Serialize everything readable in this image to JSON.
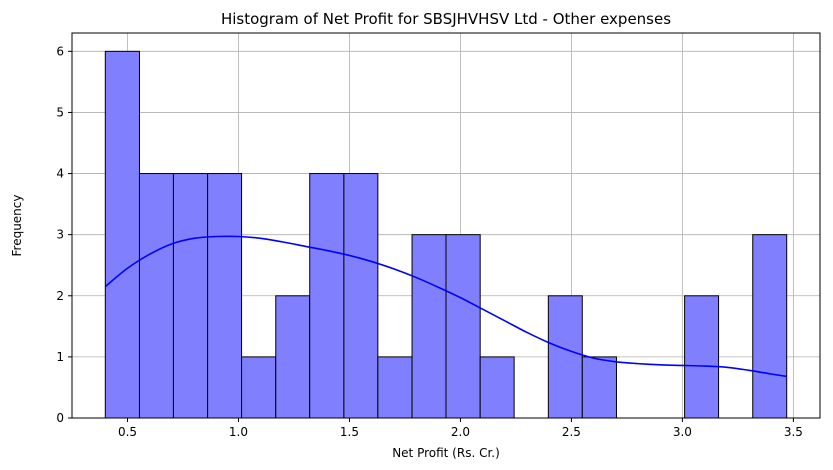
{
  "chart_data": {
    "type": "histogram",
    "title": "Histogram of Net Profit for SBSJHVHSV Ltd - Other expenses",
    "xlabel": "Net Profit (Rs. Cr.)",
    "ylabel": "Frequency",
    "xlim": [
      0.25,
      3.62
    ],
    "ylim": [
      0,
      6.3
    ],
    "xticks": [
      0.5,
      1.0,
      1.5,
      2.0,
      2.5,
      3.0,
      3.5
    ],
    "xtick_labels": [
      "0.5",
      "1.0",
      "1.5",
      "2.0",
      "2.5",
      "3.0",
      "3.5"
    ],
    "yticks": [
      0,
      1,
      2,
      3,
      4,
      5,
      6
    ],
    "ytick_labels": [
      "0",
      "1",
      "2",
      "3",
      "4",
      "5",
      "6"
    ],
    "grid": true,
    "bins": [
      {
        "start": 0.4,
        "end": 0.554,
        "count": 6
      },
      {
        "start": 0.554,
        "end": 0.707,
        "count": 4
      },
      {
        "start": 0.707,
        "end": 0.861,
        "count": 4
      },
      {
        "start": 0.861,
        "end": 1.014,
        "count": 4
      },
      {
        "start": 1.014,
        "end": 1.168,
        "count": 1
      },
      {
        "start": 1.168,
        "end": 1.321,
        "count": 2
      },
      {
        "start": 1.321,
        "end": 1.475,
        "count": 4
      },
      {
        "start": 1.475,
        "end": 1.628,
        "count": 4
      },
      {
        "start": 1.628,
        "end": 1.782,
        "count": 1
      },
      {
        "start": 1.782,
        "end": 1.935,
        "count": 3
      },
      {
        "start": 1.935,
        "end": 2.089,
        "count": 3
      },
      {
        "start": 2.089,
        "end": 2.242,
        "count": 1
      },
      {
        "start": 2.242,
        "end": 2.396,
        "count": 0
      },
      {
        "start": 2.396,
        "end": 2.549,
        "count": 2
      },
      {
        "start": 2.549,
        "end": 2.703,
        "count": 1
      },
      {
        "start": 2.703,
        "end": 2.856,
        "count": 0
      },
      {
        "start": 2.856,
        "end": 3.01,
        "count": 0
      },
      {
        "start": 3.01,
        "end": 3.163,
        "count": 2
      },
      {
        "start": 3.163,
        "end": 3.317,
        "count": 0
      },
      {
        "start": 3.317,
        "end": 3.47,
        "count": 3
      }
    ],
    "kde": {
      "x": [
        0.4,
        0.5,
        0.6,
        0.7,
        0.8,
        0.9,
        1.0,
        1.1,
        1.2,
        1.3,
        1.4,
        1.5,
        1.6,
        1.7,
        1.8,
        1.9,
        2.0,
        2.1,
        2.2,
        2.3,
        2.4,
        2.5,
        2.6,
        2.7,
        2.8,
        2.9,
        3.0,
        3.1,
        3.2,
        3.3,
        3.4,
        3.47
      ],
      "y": [
        2.15,
        2.45,
        2.68,
        2.85,
        2.94,
        2.97,
        2.97,
        2.94,
        2.88,
        2.81,
        2.74,
        2.66,
        2.56,
        2.44,
        2.3,
        2.14,
        1.97,
        1.78,
        1.59,
        1.4,
        1.23,
        1.09,
        0.98,
        0.92,
        0.89,
        0.87,
        0.86,
        0.85,
        0.83,
        0.78,
        0.72,
        0.68
      ]
    },
    "colors": {
      "bar_fill": "#8080ff",
      "bar_edge": "#000000",
      "kde_line": "#0000ff",
      "grid": "#b0b0b0"
    }
  }
}
